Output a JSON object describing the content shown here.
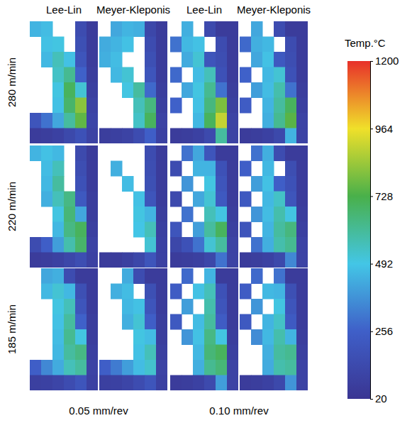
{
  "chart_data": {
    "type": "heatmap",
    "column_labels": [
      "Lee-Lin",
      "Meyer-Kleponis",
      "Lee-Lin",
      "Meyer-Kleponis"
    ],
    "row_labels": [
      "280 m/min",
      "220 m/min",
      "185 m/min"
    ],
    "group_labels": [
      "0.05 mm/rev",
      "0.10 mm/rev"
    ],
    "colorbar": {
      "title": "Temp.°C",
      "range": [
        20,
        1200
      ],
      "ticks": [
        20,
        256,
        492,
        728,
        964,
        1200
      ]
    },
    "panels": [
      [
        [
          [
            450,
            470,
            null,
            null,
            150,
            60
          ],
          [
            null,
            480,
            500,
            null,
            170,
            60
          ],
          [
            null,
            460,
            560,
            480,
            200,
            60
          ],
          [
            null,
            null,
            540,
            620,
            260,
            70
          ],
          [
            null,
            null,
            500,
            700,
            520,
            80
          ],
          [
            null,
            null,
            480,
            680,
            820,
            100
          ],
          [
            200,
            300,
            420,
            600,
            760,
            110
          ],
          [
            60,
            70,
            90,
            130,
            180,
            100
          ]
        ],
        [
          [
            null,
            420,
            450,
            440,
            120,
            60
          ],
          [
            430,
            450,
            480,
            null,
            150,
            60
          ],
          [
            440,
            470,
            null,
            null,
            170,
            60
          ],
          [
            null,
            460,
            520,
            null,
            200,
            60
          ],
          [
            null,
            null,
            500,
            600,
            280,
            70
          ],
          [
            null,
            null,
            null,
            560,
            650,
            80
          ],
          [
            null,
            null,
            null,
            540,
            700,
            100
          ],
          [
            70,
            80,
            100,
            150,
            250,
            90
          ]
        ],
        [
          [
            null,
            440,
            null,
            140,
            60,
            60
          ],
          [
            300,
            460,
            480,
            null,
            150,
            60
          ],
          [
            null,
            430,
            520,
            200,
            160,
            60
          ],
          [
            280,
            null,
            470,
            560,
            180,
            60
          ],
          [
            null,
            420,
            500,
            620,
            300,
            70
          ],
          [
            260,
            null,
            480,
            650,
            800,
            80
          ],
          [
            null,
            null,
            460,
            700,
            900,
            100
          ],
          [
            60,
            70,
            90,
            140,
            600,
            100
          ]
        ],
        [
          [
            null,
            420,
            null,
            150,
            60,
            60
          ],
          [
            280,
            440,
            460,
            null,
            150,
            60
          ],
          [
            null,
            420,
            480,
            220,
            160,
            60
          ],
          [
            260,
            null,
            460,
            520,
            180,
            60
          ],
          [
            null,
            400,
            470,
            580,
            300,
            70
          ],
          [
            240,
            null,
            450,
            600,
            700,
            80
          ],
          [
            null,
            null,
            440,
            620,
            750,
            100
          ],
          [
            60,
            70,
            90,
            130,
            450,
            100
          ]
        ]
      ],
      [
        [
          [
            450,
            480,
            460,
            null,
            140,
            60
          ],
          [
            null,
            470,
            560,
            null,
            160,
            60
          ],
          [
            null,
            460,
            600,
            null,
            180,
            60
          ],
          [
            null,
            440,
            560,
            640,
            220,
            70
          ],
          [
            null,
            null,
            500,
            660,
            420,
            70
          ],
          [
            null,
            null,
            460,
            640,
            700,
            80
          ],
          [
            150,
            250,
            400,
            580,
            680,
            100
          ],
          [
            60,
            70,
            90,
            120,
            160,
            90
          ]
        ],
        [
          [
            null,
            null,
            null,
            null,
            150,
            60
          ],
          [
            null,
            440,
            null,
            null,
            160,
            60
          ],
          [
            null,
            null,
            470,
            null,
            170,
            60
          ],
          [
            null,
            null,
            null,
            480,
            200,
            60
          ],
          [
            null,
            null,
            null,
            500,
            450,
            70
          ],
          [
            null,
            null,
            null,
            490,
            560,
            80
          ],
          [
            null,
            null,
            null,
            null,
            520,
            90
          ],
          [
            60,
            60,
            80,
            120,
            200,
            90
          ]
        ],
        [
          [
            null,
            300,
            420,
            200,
            60,
            60
          ],
          [
            150,
            null,
            450,
            450,
            180,
            60
          ],
          [
            null,
            380,
            null,
            500,
            200,
            60
          ],
          [
            140,
            null,
            420,
            520,
            220,
            60
          ],
          [
            null,
            300,
            null,
            560,
            500,
            70
          ],
          [
            200,
            null,
            400,
            600,
            700,
            80
          ],
          [
            120,
            180,
            300,
            520,
            600,
            100
          ],
          [
            60,
            70,
            80,
            120,
            300,
            100
          ]
        ],
        [
          [
            null,
            300,
            440,
            150,
            60,
            60
          ],
          [
            250,
            null,
            460,
            null,
            160,
            60
          ],
          [
            null,
            400,
            480,
            250,
            180,
            60
          ],
          [
            220,
            null,
            460,
            540,
            200,
            60
          ],
          [
            null,
            380,
            470,
            580,
            500,
            70
          ],
          [
            200,
            null,
            450,
            600,
            650,
            80
          ],
          [
            null,
            300,
            440,
            580,
            620,
            100
          ],
          [
            60,
            70,
            90,
            130,
            350,
            100
          ]
        ]
      ],
      [
        [
          [
            null,
            420,
            440,
            150,
            60,
            60
          ],
          [
            null,
            460,
            520,
            460,
            170,
            60
          ],
          [
            null,
            null,
            500,
            560,
            200,
            60
          ],
          [
            null,
            null,
            480,
            600,
            260,
            70
          ],
          [
            null,
            null,
            470,
            620,
            500,
            70
          ],
          [
            null,
            null,
            460,
            600,
            640,
            80
          ],
          [
            250,
            350,
            430,
            560,
            600,
            100
          ],
          [
            80,
            90,
            110,
            150,
            200,
            90
          ]
        ],
        [
          [
            null,
            null,
            430,
            150,
            60,
            60
          ],
          [
            null,
            440,
            470,
            null,
            170,
            60
          ],
          [
            null,
            null,
            460,
            480,
            200,
            60
          ],
          [
            null,
            null,
            440,
            520,
            250,
            70
          ],
          [
            null,
            null,
            null,
            500,
            470,
            70
          ],
          [
            null,
            null,
            null,
            480,
            560,
            80
          ],
          [
            250,
            320,
            400,
            470,
            530,
            100
          ],
          [
            80,
            90,
            110,
            150,
            200,
            90
          ]
        ],
        [
          [
            null,
            280,
            null,
            450,
            60,
            60
          ],
          [
            240,
            null,
            480,
            560,
            180,
            60
          ],
          [
            null,
            400,
            null,
            580,
            200,
            60
          ],
          [
            220,
            null,
            470,
            600,
            240,
            60
          ],
          [
            null,
            380,
            480,
            640,
            500,
            70
          ],
          [
            null,
            null,
            460,
            660,
            700,
            80
          ],
          [
            null,
            null,
            440,
            620,
            660,
            100
          ],
          [
            60,
            70,
            90,
            140,
            400,
            100
          ]
        ],
        [
          [
            null,
            280,
            null,
            300,
            60,
            60
          ],
          [
            240,
            null,
            460,
            450,
            170,
            60
          ],
          [
            null,
            380,
            null,
            500,
            200,
            60
          ],
          [
            220,
            null,
            450,
            540,
            230,
            60
          ],
          [
            null,
            360,
            460,
            580,
            450,
            70
          ],
          [
            null,
            null,
            440,
            600,
            620,
            80
          ],
          [
            null,
            null,
            430,
            580,
            600,
            100
          ],
          [
            60,
            70,
            90,
            130,
            380,
            100
          ]
        ]
      ]
    ]
  }
}
